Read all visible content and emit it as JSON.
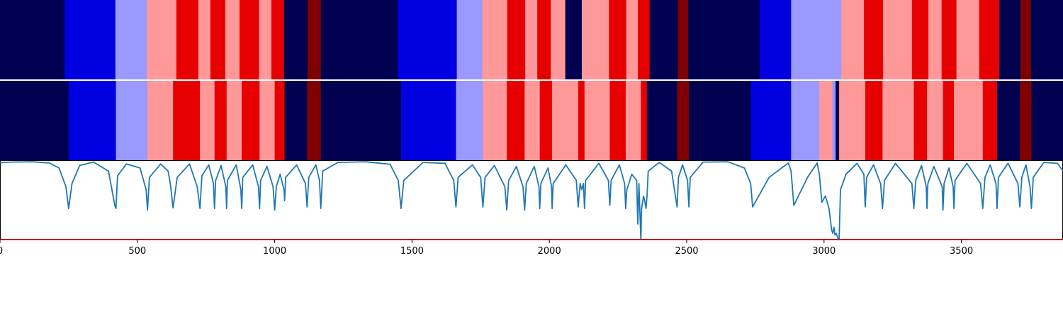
{
  "chart_data": [
    {
      "type": "heatmap",
      "title": "",
      "palette": {
        "dark_navy": "#000050",
        "blue": "#0000E0",
        "light_blue": "#9999FF",
        "pink": "#FF9999",
        "red": "#E60000",
        "dark_red": "#800000"
      },
      "segments": [
        {
          "start": 0,
          "end": 235,
          "color": "dark_navy"
        },
        {
          "start": 235,
          "end": 420,
          "color": "blue"
        },
        {
          "start": 420,
          "end": 535,
          "color": "light_blue"
        },
        {
          "start": 535,
          "end": 642,
          "color": "pink"
        },
        {
          "start": 642,
          "end": 722,
          "color": "red"
        },
        {
          "start": 722,
          "end": 766,
          "color": "pink"
        },
        {
          "start": 766,
          "end": 820,
          "color": "red"
        },
        {
          "start": 820,
          "end": 872,
          "color": "pink"
        },
        {
          "start": 872,
          "end": 943,
          "color": "red"
        },
        {
          "start": 943,
          "end": 988,
          "color": "pink"
        },
        {
          "start": 988,
          "end": 1034,
          "color": "red"
        },
        {
          "start": 1034,
          "end": 1120,
          "color": "dark_navy"
        },
        {
          "start": 1120,
          "end": 1168,
          "color": "dark_red"
        },
        {
          "start": 1168,
          "end": 1448,
          "color": "dark_navy"
        },
        {
          "start": 1448,
          "end": 1663,
          "color": "blue"
        },
        {
          "start": 1663,
          "end": 1756,
          "color": "light_blue"
        },
        {
          "start": 1756,
          "end": 1847,
          "color": "pink"
        },
        {
          "start": 1847,
          "end": 1912,
          "color": "red"
        },
        {
          "start": 1912,
          "end": 1956,
          "color": "pink"
        },
        {
          "start": 1956,
          "end": 2005,
          "color": "red"
        },
        {
          "start": 2005,
          "end": 2058,
          "color": "pink"
        },
        {
          "start": 2058,
          "end": 2118,
          "color": "dark_navy"
        },
        {
          "start": 2118,
          "end": 2217,
          "color": "pink"
        },
        {
          "start": 2217,
          "end": 2280,
          "color": "red"
        },
        {
          "start": 2280,
          "end": 2322,
          "color": "pink"
        },
        {
          "start": 2322,
          "end": 2365,
          "color": "red"
        },
        {
          "start": 2365,
          "end": 2468,
          "color": "dark_navy"
        },
        {
          "start": 2468,
          "end": 2505,
          "color": "dark_red"
        },
        {
          "start": 2505,
          "end": 2765,
          "color": "dark_navy"
        },
        {
          "start": 2765,
          "end": 2880,
          "color": "blue"
        },
        {
          "start": 2880,
          "end": 3063,
          "color": "light_blue"
        },
        {
          "start": 3063,
          "end": 3145,
          "color": "pink"
        },
        {
          "start": 3145,
          "end": 3215,
          "color": "red"
        },
        {
          "start": 3215,
          "end": 3320,
          "color": "pink"
        },
        {
          "start": 3320,
          "end": 3380,
          "color": "red"
        },
        {
          "start": 3380,
          "end": 3428,
          "color": "pink"
        },
        {
          "start": 3428,
          "end": 3482,
          "color": "red"
        },
        {
          "start": 3482,
          "end": 3565,
          "color": "pink"
        },
        {
          "start": 3565,
          "end": 3638,
          "color": "red"
        },
        {
          "start": 3638,
          "end": 3715,
          "color": "dark_navy"
        },
        {
          "start": 3715,
          "end": 3753,
          "color": "dark_red"
        },
        {
          "start": 3753,
          "end": 3870,
          "color": "dark_navy"
        }
      ]
    },
    {
      "type": "heatmap",
      "title": "",
      "segments": [
        {
          "start": 0,
          "end": 250,
          "color": "dark_navy"
        },
        {
          "start": 250,
          "end": 422,
          "color": "blue"
        },
        {
          "start": 422,
          "end": 537,
          "color": "light_blue"
        },
        {
          "start": 537,
          "end": 630,
          "color": "pink"
        },
        {
          "start": 630,
          "end": 728,
          "color": "red"
        },
        {
          "start": 728,
          "end": 781,
          "color": "pink"
        },
        {
          "start": 781,
          "end": 825,
          "color": "red"
        },
        {
          "start": 825,
          "end": 880,
          "color": "pink"
        },
        {
          "start": 880,
          "end": 945,
          "color": "red"
        },
        {
          "start": 945,
          "end": 1000,
          "color": "pink"
        },
        {
          "start": 1000,
          "end": 1036,
          "color": "red"
        },
        {
          "start": 1036,
          "end": 1118,
          "color": "dark_navy"
        },
        {
          "start": 1118,
          "end": 1168,
          "color": "dark_red"
        },
        {
          "start": 1168,
          "end": 1460,
          "color": "dark_navy"
        },
        {
          "start": 1460,
          "end": 1660,
          "color": "blue"
        },
        {
          "start": 1660,
          "end": 1758,
          "color": "light_blue"
        },
        {
          "start": 1758,
          "end": 1845,
          "color": "pink"
        },
        {
          "start": 1845,
          "end": 1910,
          "color": "red"
        },
        {
          "start": 1910,
          "end": 1965,
          "color": "pink"
        },
        {
          "start": 1965,
          "end": 2010,
          "color": "red"
        },
        {
          "start": 2010,
          "end": 2105,
          "color": "pink"
        },
        {
          "start": 2105,
          "end": 2128,
          "color": "red"
        },
        {
          "start": 2128,
          "end": 2220,
          "color": "pink"
        },
        {
          "start": 2220,
          "end": 2278,
          "color": "red"
        },
        {
          "start": 2278,
          "end": 2333,
          "color": "pink"
        },
        {
          "start": 2333,
          "end": 2355,
          "color": "red"
        },
        {
          "start": 2355,
          "end": 2465,
          "color": "dark_navy"
        },
        {
          "start": 2465,
          "end": 2508,
          "color": "dark_red"
        },
        {
          "start": 2508,
          "end": 2733,
          "color": "dark_navy"
        },
        {
          "start": 2733,
          "end": 2880,
          "color": "blue"
        },
        {
          "start": 2880,
          "end": 2983,
          "color": "light_blue"
        },
        {
          "start": 2983,
          "end": 3030,
          "color": "pink"
        },
        {
          "start": 3030,
          "end": 3042,
          "color": "light_blue"
        },
        {
          "start": 3042,
          "end": 3055,
          "color": "dark_navy"
        },
        {
          "start": 3055,
          "end": 3150,
          "color": "pink"
        },
        {
          "start": 3150,
          "end": 3213,
          "color": "red"
        },
        {
          "start": 3213,
          "end": 3327,
          "color": "pink"
        },
        {
          "start": 3327,
          "end": 3375,
          "color": "red"
        },
        {
          "start": 3375,
          "end": 3433,
          "color": "pink"
        },
        {
          "start": 3433,
          "end": 3473,
          "color": "red"
        },
        {
          "start": 3473,
          "end": 3578,
          "color": "pink"
        },
        {
          "start": 3578,
          "end": 3630,
          "color": "red"
        },
        {
          "start": 3630,
          "end": 3713,
          "color": "dark_navy"
        },
        {
          "start": 3713,
          "end": 3755,
          "color": "dark_red"
        },
        {
          "start": 3755,
          "end": 3870,
          "color": "dark_navy"
        }
      ]
    },
    {
      "type": "line",
      "title": "",
      "xlabel": "",
      "ylabel": "",
      "xlim": [
        0,
        3870
      ],
      "ylim": [
        -1.5,
        1.05
      ],
      "xticks": [
        0,
        500,
        1000,
        1500,
        2000,
        2500,
        3000,
        3500
      ],
      "xtick_labels": [
        "0",
        "500",
        "1000",
        "1500",
        "2000",
        "2500",
        "3000",
        "3500"
      ],
      "grid": false,
      "series": [
        {
          "color": "#1F77B4",
          "x": [
            0,
            40,
            120,
            180,
            215,
            240,
            250,
            262,
            290,
            340,
            395,
            418,
            422,
            428,
            460,
            510,
            532,
            537,
            544,
            585,
            612,
            620,
            630,
            645,
            690,
            718,
            728,
            735,
            760,
            777,
            781,
            785,
            805,
            822,
            825,
            828,
            860,
            877,
            880,
            884,
            920,
            941,
            945,
            949,
            972,
            994,
            1000,
            1006,
            1020,
            1034,
            1036,
            1040,
            1080,
            1112,
            1118,
            1124,
            1150,
            1163,
            1168,
            1175,
            1230,
            1330,
            1420,
            1450,
            1460,
            1470,
            1540,
            1620,
            1652,
            1660,
            1668,
            1720,
            1750,
            1758,
            1766,
            1800,
            1838,
            1845,
            1852,
            1880,
            1904,
            1910,
            1916,
            1945,
            1962,
            1965,
            1969,
            1995,
            2008,
            2010,
            2014,
            2060,
            2098,
            2105,
            2112,
            2118,
            2124,
            2128,
            2132,
            2180,
            2215,
            2220,
            2225,
            2255,
            2274,
            2278,
            2282,
            2300,
            2318,
            2322,
            2326,
            2330,
            2333,
            2336,
            2343,
            2348,
            2352,
            2356,
            2360,
            2400,
            2445,
            2465,
            2470,
            2485,
            2503,
            2508,
            2513,
            2560,
            2650,
            2710,
            2733,
            2740,
            2800,
            2870,
            2880,
            2890,
            2940,
            2975,
            2983,
            2992,
            3005,
            3018,
            3028,
            3032,
            3036,
            3040,
            3045,
            3050,
            3055,
            3060,
            3080,
            3120,
            3145,
            3150,
            3155,
            3180,
            3206,
            3213,
            3220,
            3260,
            3320,
            3327,
            3334,
            3355,
            3372,
            3375,
            3378,
            3400,
            3430,
            3433,
            3437,
            3455,
            3470,
            3473,
            3477,
            3520,
            3570,
            3578,
            3586,
            3605,
            3626,
            3630,
            3635,
            3670,
            3706,
            3713,
            3720,
            3735,
            3750,
            3755,
            3762,
            3800,
            3850,
            3870
          ],
          "y": [
            0.97,
            0.99,
            1.0,
            0.96,
            0.8,
            0.2,
            -0.5,
            0.3,
            0.88,
            0.99,
            0.7,
            -0.4,
            -0.5,
            0.55,
            0.93,
            0.8,
            0.1,
            -0.55,
            0.5,
            0.93,
            0.7,
            0.3,
            -0.48,
            0.5,
            0.93,
            0.2,
            -0.5,
            0.55,
            0.9,
            0.3,
            -0.5,
            0.4,
            0.88,
            0.2,
            -0.5,
            0.4,
            0.9,
            0.1,
            -0.5,
            0.5,
            0.9,
            0.2,
            -0.5,
            0.4,
            0.85,
            0.2,
            -0.55,
            0.2,
            0.6,
            0.1,
            -0.25,
            0.5,
            0.9,
            0.3,
            -0.45,
            0.5,
            0.9,
            0.4,
            -0.5,
            0.7,
            0.98,
            1.0,
            0.92,
            0.4,
            -0.5,
            0.4,
            0.98,
            0.95,
            0.4,
            -0.45,
            0.5,
            0.9,
            0.5,
            -0.45,
            0.5,
            0.88,
            0.2,
            -0.55,
            0.4,
            0.85,
            0.2,
            -0.55,
            0.3,
            0.85,
            0.2,
            -0.5,
            0.3,
            0.8,
            0.2,
            -0.5,
            0.3,
            0.9,
            0.4,
            -0.45,
            0.3,
            0.1,
            0.3,
            -0.5,
            0.4,
            0.95,
            0.4,
            -0.4,
            0.4,
            0.9,
            0.3,
            -0.5,
            0.1,
            0.6,
            0.4,
            -1.0,
            0.3,
            -0.7,
            -1.5,
            -0.5,
            -0.1,
            -0.3,
            -0.5,
            -0.05,
            0.7,
            0.98,
            0.7,
            -0.45,
            0.5,
            0.9,
            0.4,
            -0.45,
            0.5,
            0.99,
            1.0,
            0.8,
            0.3,
            -0.45,
            0.5,
            0.96,
            0.7,
            -0.4,
            0.5,
            0.96,
            0.6,
            -0.3,
            -0.1,
            -0.5,
            -1.2,
            -1.3,
            -1.1,
            -1.35,
            -1.3,
            -1.45,
            -1.5,
            0.1,
            0.6,
            0.95,
            0.6,
            -0.45,
            0.5,
            0.9,
            0.3,
            -0.5,
            0.4,
            0.95,
            0.3,
            -0.5,
            0.4,
            0.88,
            0.2,
            -0.5,
            0.3,
            0.85,
            0.2,
            -0.55,
            0.3,
            0.8,
            0.2,
            -0.5,
            0.4,
            0.95,
            0.3,
            -0.5,
            0.5,
            0.9,
            0.3,
            -0.5,
            0.5,
            0.95,
            0.3,
            -0.45,
            0.5,
            0.9,
            0.2,
            -0.5,
            0.5,
            0.98,
            0.95,
            0.7
          ]
        },
        {
          "color": "#E60000",
          "x": [
            0,
            3870
          ],
          "y": [
            -1.5,
            -1.5
          ]
        }
      ]
    }
  ]
}
